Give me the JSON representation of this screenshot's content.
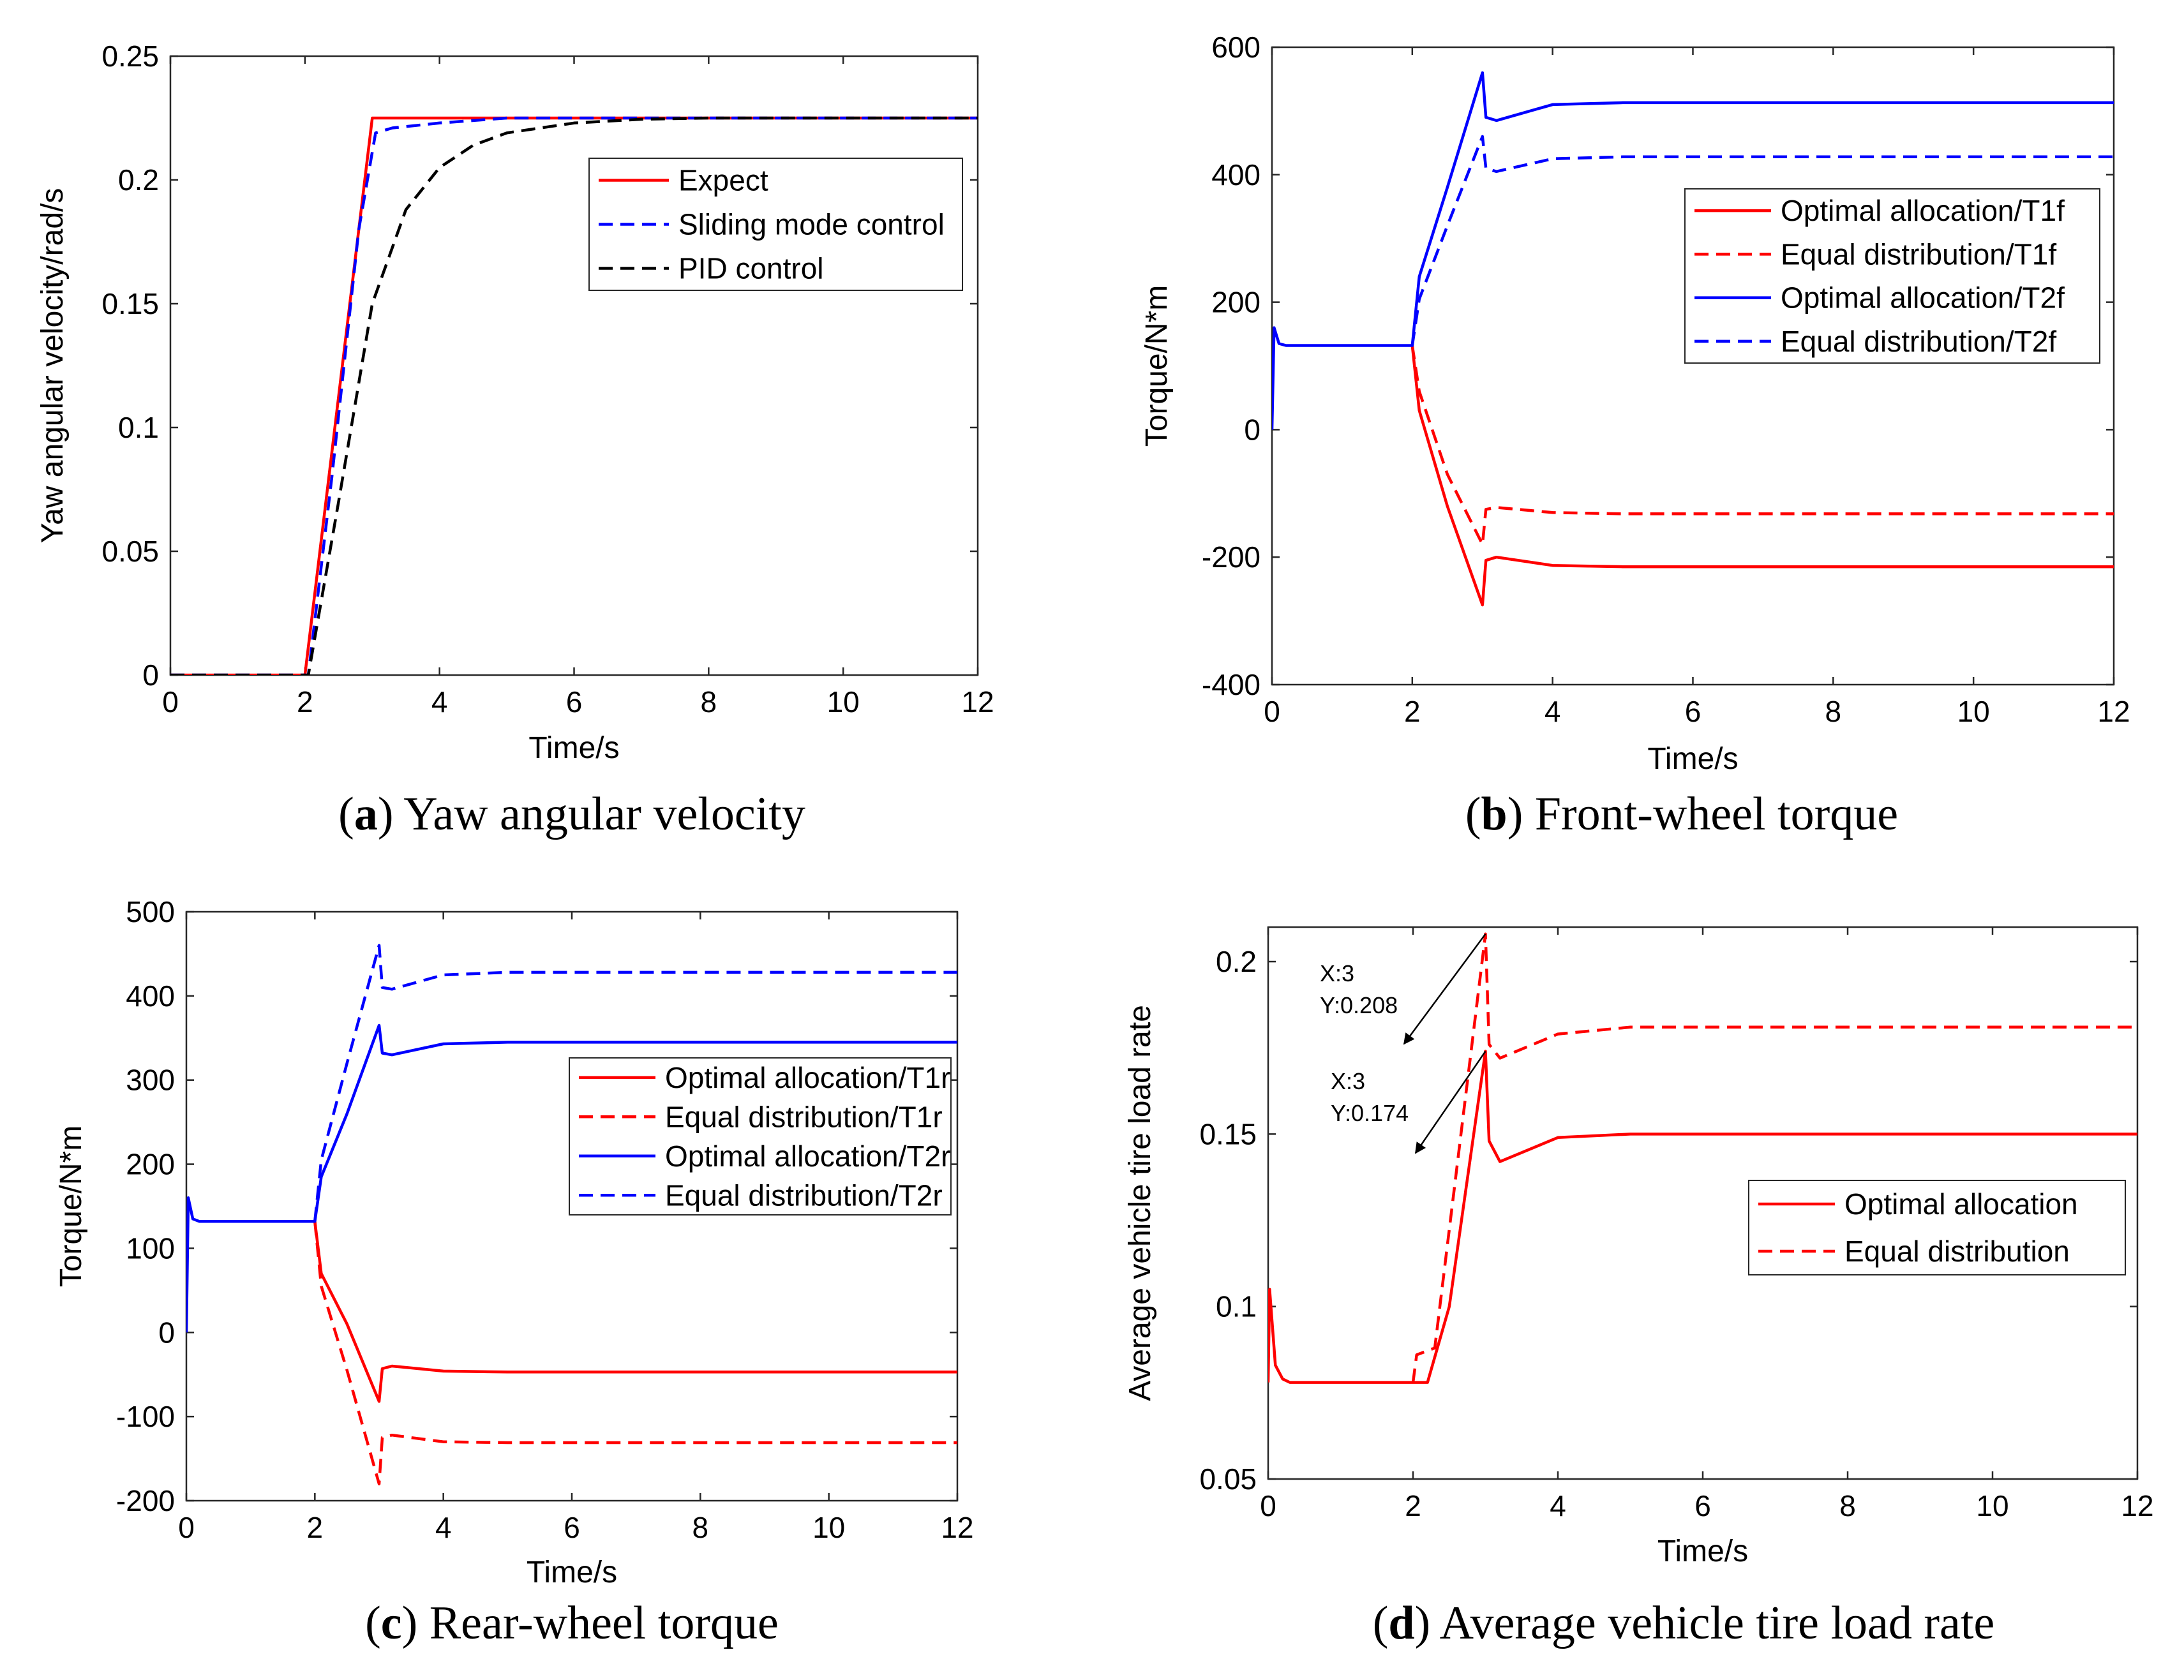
{
  "colors": {
    "red": "#ff0000",
    "blue": "#0000ff",
    "black": "#000000",
    "axis": "#262626"
  },
  "chart_data": [
    {
      "id": "a",
      "type": "line",
      "caption_letter": "a",
      "caption_text": " Yaw angular velocity",
      "xlabel": "Time/s",
      "ylabel": "Yaw angular velocity/rad/s",
      "xlim": [
        0,
        12
      ],
      "ylim": [
        0,
        0.25
      ],
      "xticks": [
        0,
        2,
        4,
        6,
        8,
        10,
        12
      ],
      "xtick_labels": [
        "0",
        "2",
        "4",
        "6",
        "8",
        "10",
        "12"
      ],
      "yticks": [
        0,
        0.05,
        0.1,
        0.15,
        0.2,
        0.25
      ],
      "ytick_labels": [
        "0",
        "0.05",
        "0.1",
        "0.15",
        "0.2",
        "0.25"
      ],
      "legend_position": "top-right",
      "series": [
        {
          "name": "Expect",
          "color": "#ff0000",
          "dash": "solid",
          "x": [
            0,
            2,
            3,
            12
          ],
          "y": [
            0,
            0,
            0.225,
            0.225
          ]
        },
        {
          "name": "Sliding mode control",
          "color": "#0000ff",
          "dash": "dashed",
          "x": [
            0,
            2.05,
            2.4,
            2.8,
            3.05,
            3.3,
            4,
            5,
            12
          ],
          "y": [
            0,
            0,
            0.08,
            0.18,
            0.219,
            0.221,
            0.223,
            0.225,
            0.225
          ]
        },
        {
          "name": "PID control",
          "color": "#000000",
          "dash": "dashed",
          "x": [
            0,
            2.05,
            2.5,
            3,
            3.5,
            4,
            4.5,
            5,
            6,
            7,
            8,
            9,
            12
          ],
          "y": [
            0,
            0,
            0.07,
            0.15,
            0.188,
            0.205,
            0.214,
            0.219,
            0.223,
            0.2245,
            0.225,
            0.225,
            0.225
          ]
        }
      ]
    },
    {
      "id": "b",
      "type": "line",
      "caption_letter": "b",
      "caption_text": " Front-wheel torque",
      "xlabel": "Time/s",
      "ylabel": "Torque/N*m",
      "xlim": [
        0,
        12
      ],
      "ylim": [
        -400,
        600
      ],
      "xticks": [
        0,
        2,
        4,
        6,
        8,
        10,
        12
      ],
      "xtick_labels": [
        "0",
        "2",
        "4",
        "6",
        "8",
        "10",
        "12"
      ],
      "yticks": [
        -400,
        -200,
        0,
        200,
        400,
        600
      ],
      "ytick_labels": [
        "-400",
        "-200",
        "0",
        "200",
        "400",
        "600"
      ],
      "legend_position": "right",
      "series": [
        {
          "name": "Optimal allocation/T1f",
          "color": "#ff0000",
          "dash": "solid",
          "x": [
            2,
            2.1,
            2.5,
            3,
            3.05,
            3.2,
            4,
            5,
            12
          ],
          "y": [
            132,
            30,
            -120,
            -275,
            -205,
            -200,
            -213,
            -215,
            -215
          ]
        },
        {
          "name": "Equal distribution/T1f",
          "color": "#ff0000",
          "dash": "dashed",
          "x": [
            2,
            2.1,
            2.5,
            3,
            3.05,
            3.2,
            4,
            5,
            12
          ],
          "y": [
            132,
            60,
            -70,
            -180,
            -125,
            -122,
            -130,
            -132,
            -132
          ]
        },
        {
          "name": "Optimal allocation/T2f",
          "color": "#0000ff",
          "dash": "solid",
          "x": [
            0,
            0.03,
            0.1,
            0.2,
            2,
            2.1,
            2.5,
            3,
            3.05,
            3.2,
            4,
            5,
            12
          ],
          "y": [
            0,
            160,
            135,
            132,
            132,
            240,
            380,
            560,
            490,
            485,
            510,
            513,
            513
          ]
        },
        {
          "name": "Equal distribution/T2f",
          "color": "#0000ff",
          "dash": "dashed",
          "x": [
            2,
            2.1,
            2.5,
            3,
            3.05,
            3.2,
            4,
            5,
            12
          ],
          "y": [
            132,
            205,
            320,
            460,
            410,
            405,
            425,
            428,
            428
          ]
        }
      ]
    },
    {
      "id": "c",
      "type": "line",
      "caption_letter": "c",
      "caption_text": " Rear-wheel torque",
      "xlabel": "Time/s",
      "ylabel": "Torque/N*m",
      "xlim": [
        0,
        12
      ],
      "ylim": [
        -200,
        500
      ],
      "xticks": [
        0,
        2,
        4,
        6,
        8,
        10,
        12
      ],
      "xtick_labels": [
        "0",
        "2",
        "4",
        "6",
        "8",
        "10",
        "12"
      ],
      "yticks": [
        -200,
        -100,
        0,
        100,
        200,
        300,
        400,
        500
      ],
      "ytick_labels": [
        "-200",
        "-100",
        "0",
        "100",
        "200",
        "300",
        "400",
        "500"
      ],
      "legend_position": "right",
      "series": [
        {
          "name": "Optimal allocation/T1r",
          "color": "#ff0000",
          "dash": "solid",
          "x": [
            2,
            2.1,
            2.5,
            3,
            3.05,
            3.2,
            4,
            5,
            12
          ],
          "y": [
            132,
            70,
            10,
            -82,
            -43,
            -40,
            -46,
            -47,
            -47
          ]
        },
        {
          "name": "Equal distribution/T1r",
          "color": "#ff0000",
          "dash": "dashed",
          "x": [
            2,
            2.1,
            2.5,
            3,
            3.05,
            3.2,
            4,
            5,
            12
          ],
          "y": [
            132,
            55,
            -45,
            -180,
            -125,
            -122,
            -130,
            -131,
            -131
          ]
        },
        {
          "name": "Optimal allocation/T2r",
          "color": "#0000ff",
          "dash": "solid",
          "x": [
            0,
            0.03,
            0.1,
            0.2,
            2,
            2.1,
            2.5,
            3,
            3.05,
            3.2,
            4,
            5,
            12
          ],
          "y": [
            0,
            160,
            135,
            132,
            132,
            185,
            260,
            365,
            332,
            330,
            343,
            345,
            345
          ]
        },
        {
          "name": "Equal distribution/T2r",
          "color": "#0000ff",
          "dash": "dashed",
          "x": [
            2,
            2.1,
            2.5,
            3,
            3.05,
            3.2,
            4,
            5,
            12
          ],
          "y": [
            132,
            205,
            320,
            460,
            410,
            408,
            425,
            428,
            428
          ]
        }
      ]
    },
    {
      "id": "d",
      "type": "line",
      "caption_letter": "d",
      "caption_text": " Average vehicle tire load rate",
      "xlabel": "Time/s",
      "ylabel": "Average vehicle tire load rate",
      "xlim": [
        0,
        12
      ],
      "ylim": [
        0.05,
        0.21
      ],
      "xticks": [
        0,
        2,
        4,
        6,
        8,
        10,
        12
      ],
      "xtick_labels": [
        "0",
        "2",
        "4",
        "6",
        "8",
        "10",
        "12"
      ],
      "yticks": [
        0.05,
        0.1,
        0.15,
        0.2
      ],
      "ytick_labels": [
        "0.05",
        "0.1",
        "0.15",
        "0.2"
      ],
      "legend_position": "bottom-right",
      "series": [
        {
          "name": "Optimal allocation",
          "color": "#ff0000",
          "dash": "solid",
          "x": [
            0,
            0.02,
            0.1,
            0.2,
            0.3,
            2.2,
            2.5,
            3,
            3.05,
            3.2,
            4,
            5,
            12
          ],
          "y": [
            0.078,
            0.105,
            0.083,
            0.079,
            0.078,
            0.078,
            0.1,
            0.174,
            0.148,
            0.142,
            0.149,
            0.15,
            0.15
          ]
        },
        {
          "name": "Equal distribution",
          "color": "#ff0000",
          "dash": "dashed",
          "x": [
            2,
            2.05,
            2.3,
            3,
            3.05,
            3.2,
            4,
            5,
            12
          ],
          "y": [
            0.078,
            0.086,
            0.088,
            0.208,
            0.176,
            0.172,
            0.179,
            0.181,
            0.181
          ]
        }
      ],
      "annotations": [
        {
          "label_x": "X:3",
          "label_y": "Y:0.208",
          "x": 3,
          "y": 0.208
        },
        {
          "label_x": "X:3",
          "label_y": "Y:0.174",
          "x": 3,
          "y": 0.174
        }
      ]
    }
  ]
}
